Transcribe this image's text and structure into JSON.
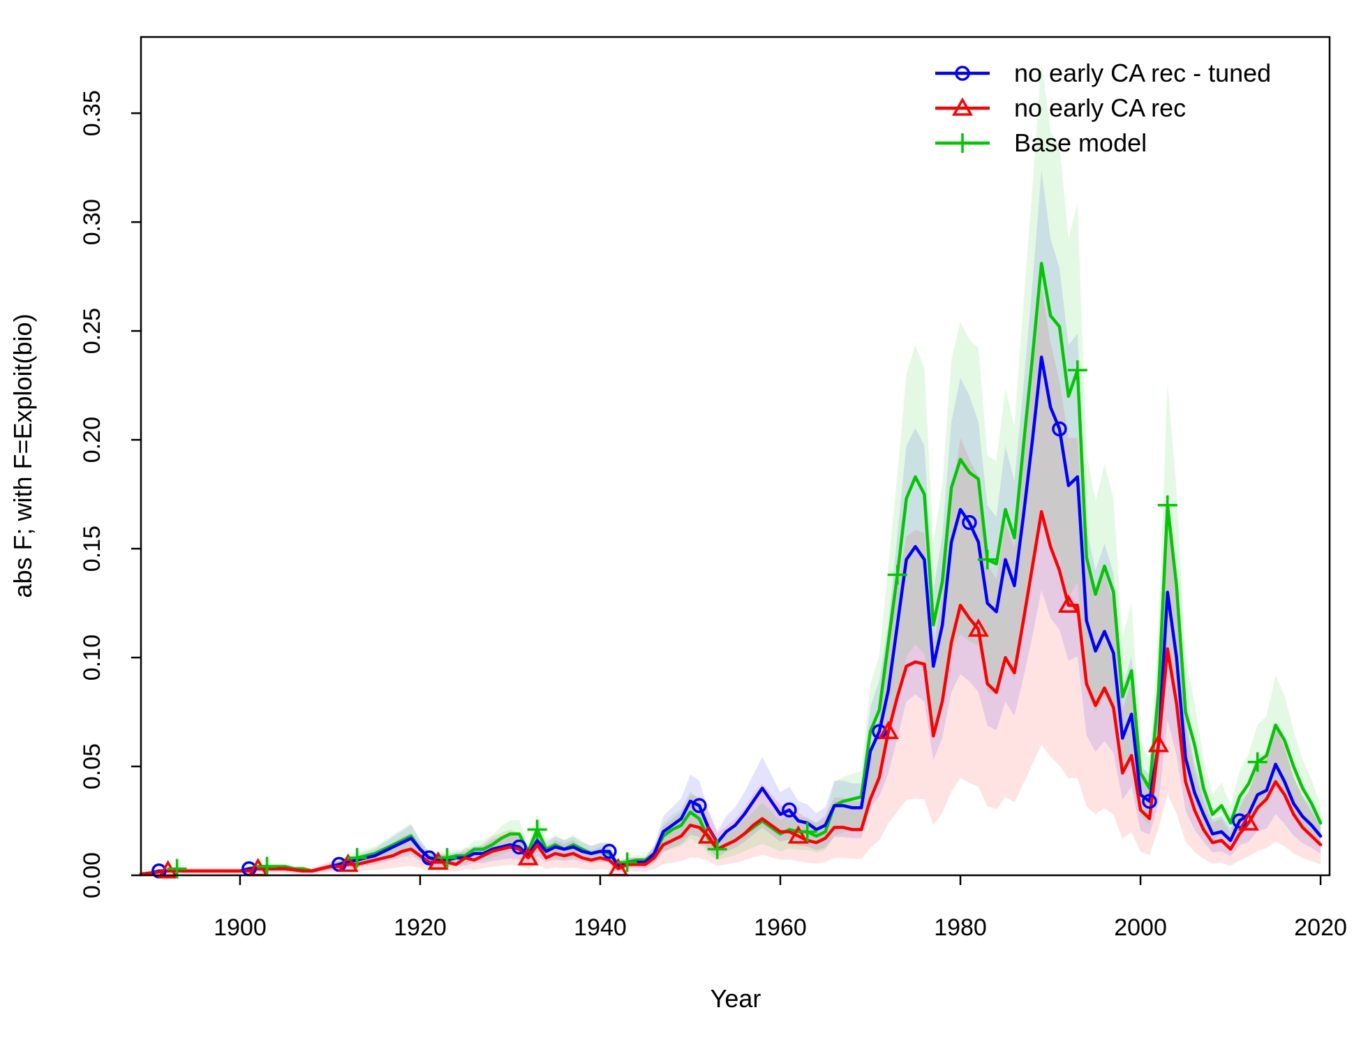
{
  "chart_data": {
    "type": "line",
    "xlabel": "Year",
    "ylabel": "abs F; with F=Exploit(bio)",
    "xlim": [
      1889,
      2021
    ],
    "ylim": [
      0,
      0.385
    ],
    "x_ticks": [
      1900,
      1920,
      1940,
      1960,
      1980,
      2000,
      2020
    ],
    "y_ticks": [
      0.0,
      0.05,
      0.1,
      0.15,
      0.2,
      0.25,
      0.3,
      0.35
    ],
    "x_tick_labels": [
      "1900",
      "1920",
      "1940",
      "1960",
      "1980",
      "2000",
      "2020"
    ],
    "y_tick_labels": [
      "0.00",
      "0.05",
      "0.10",
      "0.15",
      "0.20",
      "0.25",
      "0.30",
      "0.35"
    ],
    "legend_position": "top-right",
    "years": [
      1889,
      1890,
      1891,
      1892,
      1893,
      1894,
      1895,
      1896,
      1897,
      1898,
      1899,
      1900,
      1901,
      1902,
      1903,
      1904,
      1905,
      1906,
      1907,
      1908,
      1909,
      1910,
      1911,
      1912,
      1913,
      1914,
      1915,
      1916,
      1917,
      1918,
      1919,
      1920,
      1921,
      1922,
      1923,
      1924,
      1925,
      1926,
      1927,
      1928,
      1929,
      1930,
      1931,
      1932,
      1933,
      1934,
      1935,
      1936,
      1937,
      1938,
      1939,
      1940,
      1941,
      1942,
      1943,
      1944,
      1945,
      1946,
      1947,
      1948,
      1949,
      1950,
      1951,
      1952,
      1953,
      1954,
      1955,
      1956,
      1957,
      1958,
      1959,
      1960,
      1961,
      1962,
      1963,
      1964,
      1965,
      1966,
      1967,
      1968,
      1969,
      1970,
      1971,
      1972,
      1973,
      1974,
      1975,
      1976,
      1977,
      1978,
      1979,
      1980,
      1981,
      1982,
      1983,
      1984,
      1985,
      1986,
      1987,
      1988,
      1989,
      1990,
      1991,
      1992,
      1993,
      1994,
      1995,
      1996,
      1997,
      1998,
      1999,
      2000,
      2001,
      2002,
      2003,
      2004,
      2005,
      2006,
      2007,
      2008,
      2009,
      2010,
      2011,
      2012,
      2013,
      2014,
      2015,
      2016,
      2017,
      2018,
      2019,
      2020
    ],
    "series": [
      {
        "name": "no early CA rec - tuned",
        "color": "#0000ff",
        "marker": "circle",
        "marker_years": [
          1891,
          1901,
          1911,
          1921,
          1931,
          1941,
          1951,
          1961,
          1971,
          1981,
          1991,
          2001,
          2011
        ],
        "values": [
          0.0005,
          0.001,
          0.002,
          0.002,
          0.0025,
          0.002,
          0.002,
          0.002,
          0.002,
          0.002,
          0.002,
          0.002,
          0.003,
          0.003,
          0.003,
          0.003,
          0.003,
          0.0025,
          0.002,
          0.002,
          0.003,
          0.004,
          0.005,
          0.006,
          0.007,
          0.008,
          0.009,
          0.011,
          0.013,
          0.015,
          0.017,
          0.012,
          0.008,
          0.007,
          0.007,
          0.008,
          0.008,
          0.01,
          0.01,
          0.012,
          0.013,
          0.014,
          0.013,
          0.009,
          0.016,
          0.011,
          0.013,
          0.012,
          0.013,
          0.011,
          0.01,
          0.011,
          0.011,
          0.004,
          0.006,
          0.006,
          0.006,
          0.01,
          0.02,
          0.023,
          0.026,
          0.034,
          0.032,
          0.022,
          0.015,
          0.02,
          0.023,
          0.028,
          0.034,
          0.04,
          0.034,
          0.028,
          0.03,
          0.025,
          0.024,
          0.021,
          0.023,
          0.032,
          0.032,
          0.031,
          0.031,
          0.057,
          0.066,
          0.085,
          0.115,
          0.145,
          0.151,
          0.145,
          0.096,
          0.115,
          0.153,
          0.168,
          0.162,
          0.153,
          0.125,
          0.121,
          0.145,
          0.133,
          0.165,
          0.2,
          0.238,
          0.215,
          0.205,
          0.179,
          0.183,
          0.117,
          0.103,
          0.112,
          0.102,
          0.063,
          0.074,
          0.037,
          0.034,
          0.06,
          0.13,
          0.1,
          0.054,
          0.038,
          0.028,
          0.019,
          0.02,
          0.016,
          0.025,
          0.028,
          0.037,
          0.039,
          0.051,
          0.043,
          0.033,
          0.027,
          0.023,
          0.018
        ]
      },
      {
        "name": "no early CA rec",
        "color": "#ff0000",
        "marker": "triangle",
        "marker_years": [
          1892,
          1902,
          1912,
          1922,
          1932,
          1942,
          1952,
          1962,
          1972,
          1982,
          1992,
          2002,
          2012
        ],
        "values": [
          0.0005,
          0.001,
          0.0015,
          0.002,
          0.002,
          0.002,
          0.002,
          0.002,
          0.002,
          0.002,
          0.002,
          0.002,
          0.002,
          0.003,
          0.003,
          0.003,
          0.003,
          0.0025,
          0.002,
          0.002,
          0.003,
          0.004,
          0.004,
          0.005,
          0.005,
          0.006,
          0.007,
          0.008,
          0.009,
          0.011,
          0.012,
          0.009,
          0.006,
          0.006,
          0.006,
          0.005,
          0.008,
          0.007,
          0.009,
          0.011,
          0.012,
          0.013,
          0.012,
          0.008,
          0.014,
          0.008,
          0.01,
          0.009,
          0.01,
          0.008,
          0.007,
          0.008,
          0.007,
          0.003,
          0.005,
          0.005,
          0.005,
          0.008,
          0.014,
          0.016,
          0.018,
          0.023,
          0.022,
          0.018,
          0.012,
          0.014,
          0.016,
          0.019,
          0.023,
          0.026,
          0.023,
          0.02,
          0.02,
          0.018,
          0.016,
          0.015,
          0.017,
          0.022,
          0.022,
          0.021,
          0.021,
          0.035,
          0.045,
          0.066,
          0.082,
          0.096,
          0.098,
          0.097,
          0.064,
          0.08,
          0.107,
          0.124,
          0.118,
          0.113,
          0.088,
          0.084,
          0.1,
          0.093,
          0.117,
          0.142,
          0.167,
          0.151,
          0.14,
          0.124,
          0.124,
          0.088,
          0.078,
          0.086,
          0.077,
          0.047,
          0.055,
          0.03,
          0.026,
          0.06,
          0.104,
          0.079,
          0.043,
          0.03,
          0.021,
          0.015,
          0.016,
          0.012,
          0.019,
          0.024,
          0.031,
          0.035,
          0.043,
          0.037,
          0.028,
          0.022,
          0.018,
          0.014
        ]
      },
      {
        "name": "Base model",
        "color": "#00c800",
        "marker": "plus",
        "marker_years": [
          1893,
          1903,
          1913,
          1923,
          1933,
          1943,
          1953,
          1963,
          1973,
          1983,
          1993,
          2003,
          2013
        ],
        "values": [
          0.0005,
          0.001,
          0.002,
          0.002,
          0.003,
          0.002,
          0.002,
          0.002,
          0.002,
          0.002,
          0.002,
          0.002,
          0.003,
          0.004,
          0.004,
          0.004,
          0.004,
          0.003,
          0.003,
          0.002,
          0.003,
          0.004,
          0.005,
          0.007,
          0.008,
          0.009,
          0.01,
          0.012,
          0.014,
          0.016,
          0.018,
          0.012,
          0.008,
          0.008,
          0.008,
          0.009,
          0.009,
          0.012,
          0.012,
          0.014,
          0.017,
          0.019,
          0.019,
          0.011,
          0.021,
          0.012,
          0.014,
          0.012,
          0.014,
          0.012,
          0.01,
          0.011,
          0.01,
          0.005,
          0.006,
          0.007,
          0.007,
          0.01,
          0.018,
          0.021,
          0.023,
          0.029,
          0.026,
          0.017,
          0.012,
          0.014,
          0.016,
          0.019,
          0.022,
          0.025,
          0.022,
          0.019,
          0.021,
          0.02,
          0.02,
          0.018,
          0.02,
          0.032,
          0.034,
          0.035,
          0.036,
          0.066,
          0.076,
          0.107,
          0.138,
          0.173,
          0.183,
          0.175,
          0.115,
          0.135,
          0.178,
          0.191,
          0.185,
          0.182,
          0.145,
          0.143,
          0.168,
          0.155,
          0.197,
          0.238,
          0.281,
          0.257,
          0.252,
          0.22,
          0.232,
          0.146,
          0.129,
          0.142,
          0.13,
          0.082,
          0.094,
          0.047,
          0.04,
          0.084,
          0.17,
          0.133,
          0.075,
          0.06,
          0.04,
          0.028,
          0.032,
          0.024,
          0.036,
          0.042,
          0.052,
          0.055,
          0.069,
          0.062,
          0.05,
          0.04,
          0.033,
          0.024
        ]
      }
    ],
    "bands": [
      {
        "series": "no early CA rec - tuned",
        "color": "#0000ff",
        "lower_factor": 0.55,
        "upper_factor": 1.36
      },
      {
        "series": "no early CA rec",
        "color": "#ff0000",
        "lower_factor": 0.36,
        "upper_factor": 1.62
      },
      {
        "series": "Base model",
        "color": "#00c800",
        "lower_factor": 0.58,
        "upper_factor": 1.33
      }
    ]
  }
}
